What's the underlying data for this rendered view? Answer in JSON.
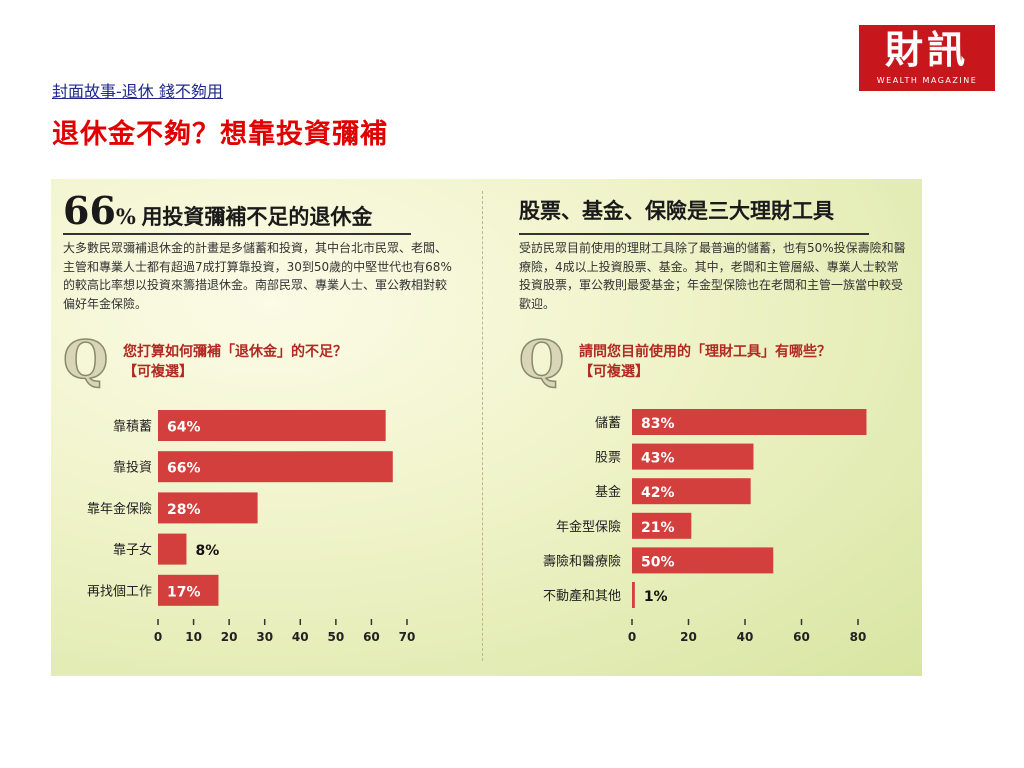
{
  "header": {
    "breadcrumb": "封面故事-退休 錢不夠用",
    "title": "退休金不夠？想靠投資彌補",
    "logo_main": "財訊",
    "logo_sub": "WEALTH MAGAZINE"
  },
  "colors": {
    "bar": "#d23f3c",
    "title": "#e00000",
    "logo": "#c8161d"
  },
  "left": {
    "headline_num": "66",
    "headline_unit": "%",
    "headline_text": "用投資彌補不足的退休金",
    "description": "大多數民眾彌補退休金的計畫是多儲蓄和投資，其中台北市民眾、老闆、主管和專業人士都有超過7成打算靠投資，30到50歲的中堅世代也有68%的較高比率想以投資來籌措退休金。南部民眾、專業人士、軍公教相對較偏好年金保險。",
    "question_line1": "您打算如何彌補「退休金」的不足？",
    "question_line2": "【可複選】"
  },
  "right": {
    "headline_text": "股票、基金、保險是三大理財工具",
    "description": "受訪民眾目前使用的理財工具除了最普遍的儲蓄，也有50%投保壽險和醫療險，4成以上投資股票、基金。其中，老闆和主管層級、專業人士較常投資股票，軍公教則最愛基金；年金型保險也在老闆和主管一族當中較受歡迎。",
    "question_line1": "請問您目前使用的「理財工具」有哪些？",
    "question_line2": "【可複選】"
  },
  "chart_data": [
    {
      "type": "bar",
      "orientation": "horizontal",
      "categories": [
        "靠積蓄",
        "靠投資",
        "靠年金保險",
        "靠子女",
        "再找個工作"
      ],
      "values": [
        64,
        66,
        28,
        8,
        17
      ],
      "value_labels": [
        "64%",
        "66%",
        "28%",
        "8%",
        "17%"
      ],
      "xlim": [
        0,
        70
      ],
      "xticks": [
        0,
        10,
        20,
        30,
        40,
        50,
        60,
        70
      ],
      "grid": false
    },
    {
      "type": "bar",
      "orientation": "horizontal",
      "categories": [
        "儲蓄",
        "股票",
        "基金",
        "年金型保險",
        "壽險和醫療險",
        "不動產和其他"
      ],
      "values": [
        83,
        43,
        42,
        21,
        50,
        1
      ],
      "value_labels": [
        "83%",
        "43%",
        "42%",
        "21%",
        "50%",
        "1%"
      ],
      "xlim": [
        0,
        80
      ],
      "xticks": [
        0,
        20,
        40,
        60,
        80
      ],
      "grid": false
    }
  ]
}
